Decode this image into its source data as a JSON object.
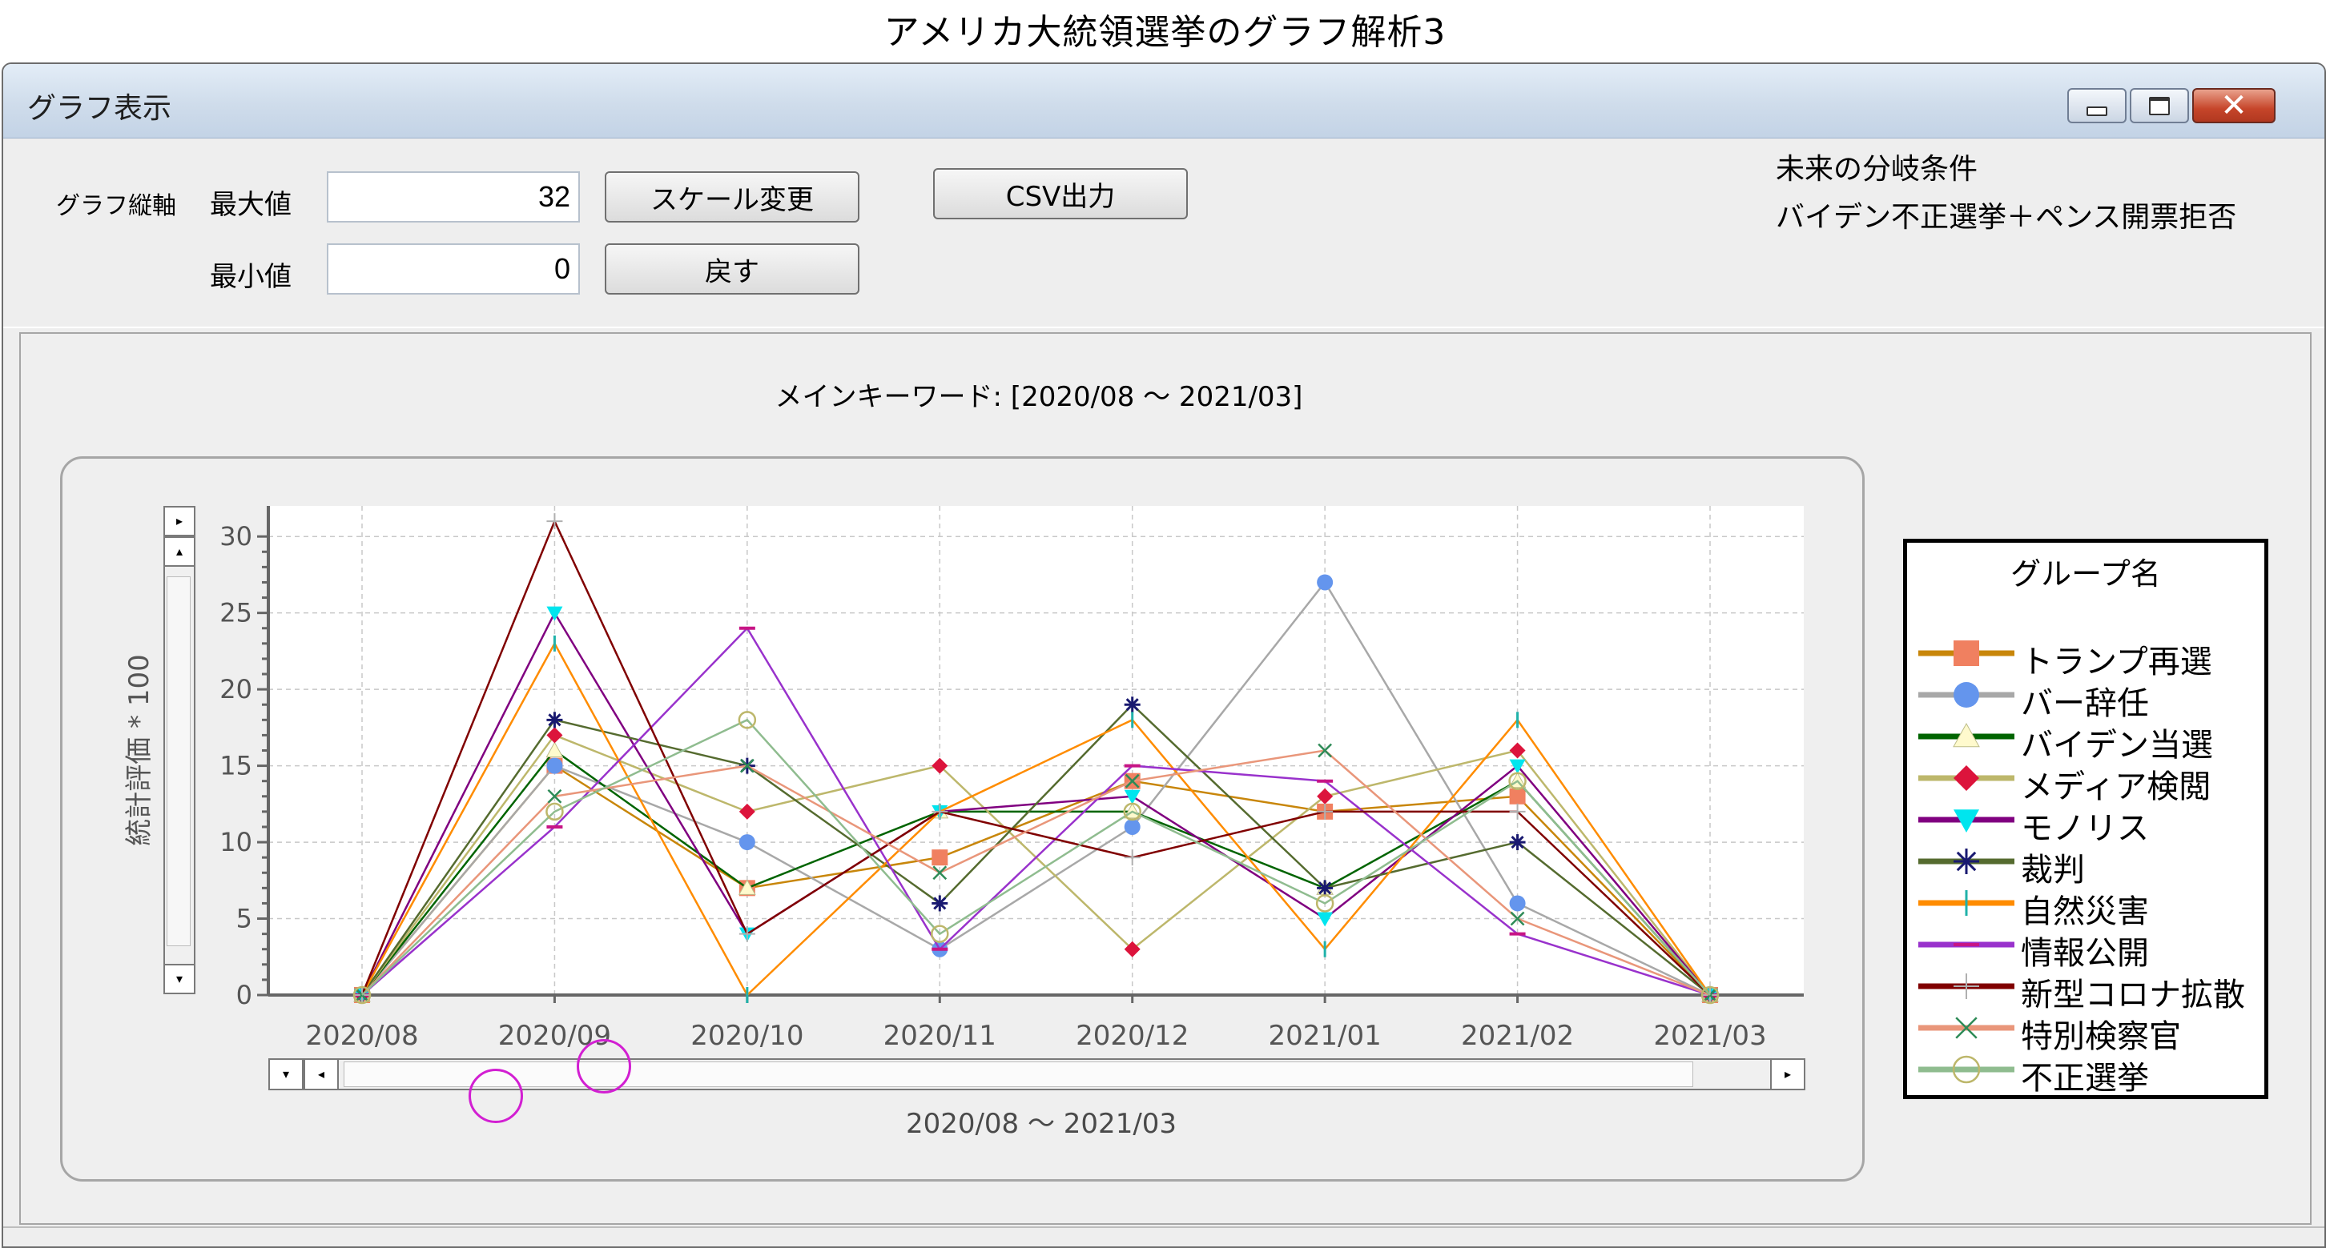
{
  "page_title": "アメリカ大統領選挙のグラフ解析3",
  "window": {
    "title": "グラフ表示",
    "controls": {
      "minimize_icon": "minimize-icon",
      "maximize_icon": "maximize-icon",
      "close_icon": "close-icon",
      "close_glyph": "✕"
    }
  },
  "form": {
    "axis_label": "グラフ縦軸",
    "max_label": "最大値",
    "max_value": "32",
    "min_label": "最小値",
    "min_value": "0",
    "scale_button": "スケール変更",
    "reset_button": "戻す",
    "csv_button": "CSV出力"
  },
  "notes": {
    "line1": "未来の分岐条件",
    "line2": "バイデン不正選挙＋ペンス開票拒否"
  },
  "chart_title": "メインキーワード: [2020/08 ～ 2021/03]",
  "range_label": "2020/08 ～ 2021/03",
  "scroll_glyphs": {
    "right": "▸",
    "up": "▴",
    "down": "▾",
    "left": "◂"
  },
  "chart_data": {
    "type": "line",
    "ylabel": "統計評価 * 100",
    "xlabel": "",
    "ylim": [
      0,
      32
    ],
    "yticks": [
      0,
      5,
      10,
      15,
      20,
      25,
      30
    ],
    "categories": [
      "2020/08",
      "2020/09",
      "2020/10",
      "2020/11",
      "2020/12",
      "2021/01",
      "2021/02",
      "2021/03"
    ],
    "grid": true,
    "legend_title": "グループ名",
    "legend_position": "right",
    "series": [
      {
        "name": "トランプ再選",
        "color": "#c8860a",
        "marker": "square",
        "marker_color": "#f08060",
        "values": [
          0,
          15,
          7,
          9,
          14,
          12,
          13,
          0
        ]
      },
      {
        "name": "バー辞任",
        "color": "#a8a8a8",
        "marker": "circle",
        "marker_color": "#6495ed",
        "values": [
          0,
          15,
          10,
          3,
          11,
          27,
          6,
          0
        ]
      },
      {
        "name": "バイデン当選",
        "color": "#006400",
        "marker": "triangle",
        "marker_color": "#fffacd",
        "values": [
          0,
          16,
          7,
          12,
          12,
          7,
          14,
          0
        ]
      },
      {
        "name": "メディア検閲",
        "color": "#bdb76b",
        "marker": "diamond",
        "marker_color": "#dc143c",
        "values": [
          0,
          17,
          12,
          15,
          3,
          13,
          16,
          0
        ]
      },
      {
        "name": "モノリス",
        "color": "#800080",
        "marker": "triangle-down",
        "marker_color": "#00e5ee",
        "values": [
          0,
          25,
          4,
          12,
          13,
          5,
          15,
          0
        ]
      },
      {
        "name": "裁判",
        "color": "#556b2f",
        "marker": "star",
        "marker_color": "#191970",
        "values": [
          0,
          18,
          15,
          6,
          19,
          7,
          10,
          0
        ]
      },
      {
        "name": "自然災害",
        "color": "#ff8c00",
        "marker": "vbar",
        "marker_color": "#20b2aa",
        "values": [
          0,
          23,
          0,
          12,
          18,
          3,
          18,
          0
        ]
      },
      {
        "name": "情報公開",
        "color": "#9932cc",
        "marker": "hbar",
        "marker_color": "#c71585",
        "values": [
          0,
          11,
          24,
          3,
          15,
          14,
          4,
          0
        ]
      },
      {
        "name": "新型コロナ拡散",
        "color": "#800000",
        "marker": "plus",
        "marker_color": "#b0b0b0",
        "values": [
          0,
          31,
          4,
          12,
          9,
          12,
          12,
          0
        ]
      },
      {
        "name": "特別検察官",
        "color": "#e9967a",
        "marker": "cross",
        "marker_color": "#2e8b57",
        "values": [
          0,
          13,
          15,
          8,
          14,
          16,
          5,
          0
        ]
      },
      {
        "name": "不正選挙",
        "color": "#8fbc8f",
        "marker": "open-circle",
        "marker_color": "#bdb76b",
        "values": [
          0,
          12,
          18,
          4,
          12,
          6,
          14,
          0
        ]
      }
    ]
  }
}
